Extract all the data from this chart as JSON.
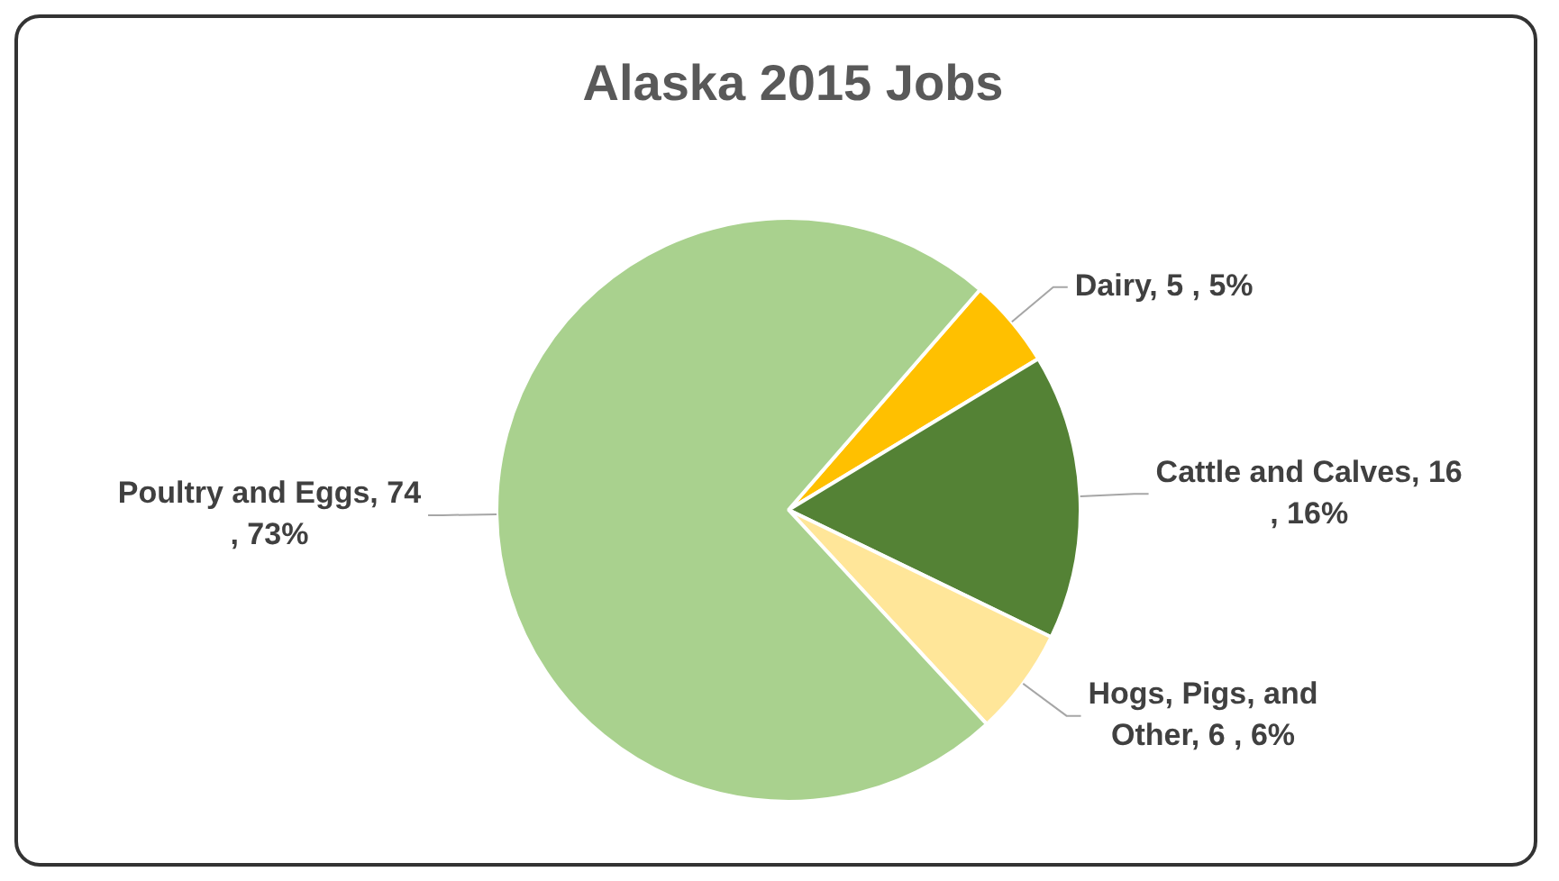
{
  "chart_data": {
    "type": "pie",
    "title": "Alaska 2015 Jobs",
    "categories": [
      "Dairy",
      "Cattle and Calves",
      "Hogs, Pigs, and Other",
      "Poultry and Eggs"
    ],
    "values": [
      5,
      16,
      6,
      74
    ],
    "value_labels": [
      "5 , 5%",
      "16 , 16%",
      "6 , 6%",
      "74 , 73%"
    ],
    "colors": [
      "#ffc000",
      "#548235",
      "#ffe699",
      "#a9d18e"
    ],
    "legend": false
  }
}
